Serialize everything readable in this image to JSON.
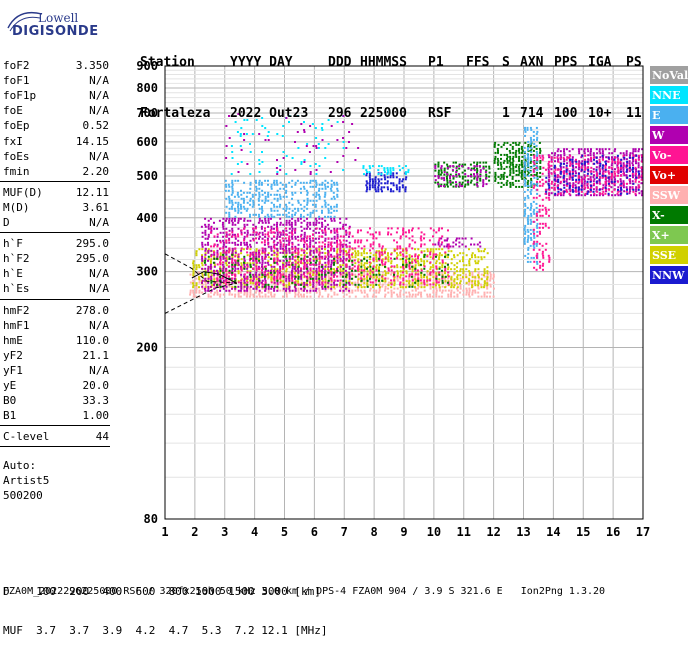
{
  "logo": {
    "line1": "Lowell",
    "line2": "DIGISONDE"
  },
  "header": {
    "labels": [
      "Station",
      "YYYY DAY",
      "DDD",
      "HHMMSS",
      "P1",
      "FFS",
      "S",
      "AXN",
      "PPS",
      "IGA",
      "PS"
    ],
    "values": [
      "Fortaleza",
      "2022 Out23",
      "296",
      "225000",
      "RSF",
      "",
      "1",
      "714",
      "100",
      "10+",
      "11"
    ]
  },
  "parameters": [
    {
      "label": "foF2",
      "value": "3.350"
    },
    {
      "label": "foF1",
      "value": "N/A"
    },
    {
      "label": "foF1p",
      "value": "N/A"
    },
    {
      "label": "foE",
      "value": "N/A"
    },
    {
      "label": "foEp",
      "value": "0.52"
    },
    {
      "label": "fxI",
      "value": "14.15"
    },
    {
      "label": "foEs",
      "value": "N/A"
    },
    {
      "label": "fmin",
      "value": "2.20"
    },
    {
      "label": "MUF(D)",
      "value": "12.11"
    },
    {
      "label": "M(D)",
      "value": "3.61"
    },
    {
      "label": "D",
      "value": "N/A"
    },
    {
      "label": "h`F",
      "value": "295.0"
    },
    {
      "label": "h`F2",
      "value": "295.0"
    },
    {
      "label": "h`E",
      "value": "N/A"
    },
    {
      "label": "h`Es",
      "value": "N/A"
    },
    {
      "label": "hmF2",
      "value": "278.0"
    },
    {
      "label": "hmF1",
      "value": "N/A"
    },
    {
      "label": "hmE",
      "value": "110.0"
    },
    {
      "label": "yF2",
      "value": "21.1"
    },
    {
      "label": "yF1",
      "value": "N/A"
    },
    {
      "label": "yE",
      "value": "20.0"
    },
    {
      "label": "B0",
      "value": "33.3"
    },
    {
      "label": "B1",
      "value": "1.00"
    },
    {
      "label": "C-level",
      "value": "44"
    }
  ],
  "autoscale": {
    "line1": "Auto:",
    "line2": "Artist5",
    "line3": "500200"
  },
  "legend": [
    {
      "label": "NoVal",
      "color": "#a0a0a0"
    },
    {
      "label": "NNE",
      "color": "#00e5ff"
    },
    {
      "label": "E",
      "color": "#4ab0f0"
    },
    {
      "label": "W",
      "color": "#b000b0"
    },
    {
      "label": "Vo-",
      "color": "#ff1493"
    },
    {
      "label": "Vo+",
      "color": "#e00000"
    },
    {
      "label": "SSW",
      "color": "#ffb0b0"
    },
    {
      "label": "X-",
      "color": "#007a00"
    },
    {
      "label": "X+",
      "color": "#7ec850"
    },
    {
      "label": "SSE",
      "color": "#d0d000"
    },
    {
      "label": "NNW",
      "color": "#1a1ad0"
    }
  ],
  "mufTable": {
    "dLabel": "D",
    "mufLabel": "MUF",
    "distances": [
      "100",
      "200",
      "400",
      "600",
      "800",
      "1000",
      "1500",
      "3000"
    ],
    "distUnit": "[km]",
    "mufs": [
      "3.7",
      "3.7",
      "3.9",
      "4.2",
      "4.7",
      "5.3",
      "7.2",
      "12.1"
    ],
    "mufUnit": "[MHz]"
  },
  "footer": "FZA0M_2022296225000.RSF / 320fx256h 50 kHz 5.0 km / DPS-4 FZA0M 904 / 3.9 S 321.6 E   Ion2Png 1.3.20",
  "chart_data": {
    "type": "scatter",
    "title": "",
    "xlabel": "",
    "ylabel": "",
    "xlim": [
      1,
      17
    ],
    "ylim": [
      80,
      900
    ],
    "yscale": "log",
    "xticks": [
      1,
      2,
      3,
      4,
      5,
      6,
      7,
      8,
      9,
      10,
      11,
      12,
      13,
      14,
      15,
      16,
      17
    ],
    "yticks": [
      80,
      200,
      300,
      400,
      500,
      600,
      700,
      800,
      900
    ],
    "grid": true,
    "legend_position": "right",
    "clusters": [
      {
        "name": "SSW",
        "color": "#ffb0b0",
        "x": [
          1.8,
          12.0
        ],
        "y": [
          260,
          300
        ],
        "density": 0.55
      },
      {
        "name": "SSE",
        "color": "#d0d000",
        "x": [
          1.9,
          11.8
        ],
        "y": [
          275,
          340
        ],
        "density": 0.45
      },
      {
        "name": "W",
        "color": "#b000b0",
        "x": [
          2.2,
          7.2
        ],
        "y": [
          270,
          400
        ],
        "density": 0.45
      },
      {
        "name": "Vo-",
        "color": "#ff1493",
        "x": [
          2.5,
          10.5
        ],
        "y": [
          280,
          380
        ],
        "density": 0.25
      },
      {
        "name": "X-",
        "color": "#007a00",
        "x": [
          2.2,
          10.5
        ],
        "y": [
          275,
          330
        ],
        "density": 0.12
      },
      {
        "name": "E",
        "color": "#4ab0f0",
        "x": [
          3.0,
          6.8
        ],
        "y": [
          400,
          490
        ],
        "density": 0.45
      },
      {
        "name": "NNW",
        "color": "#1a1ad0",
        "x": [
          7.7,
          9.1
        ],
        "y": [
          460,
          510
        ],
        "density": 0.6
      },
      {
        "name": "NNE",
        "color": "#00e5ff",
        "x": [
          7.6,
          9.2
        ],
        "y": [
          505,
          530
        ],
        "density": 0.5
      },
      {
        "name": "X-",
        "color": "#007a00",
        "x": [
          10.0,
          11.9
        ],
        "y": [
          470,
          540
        ],
        "density": 0.45
      },
      {
        "name": "X-",
        "color": "#007a00",
        "x": [
          12.0,
          13.6
        ],
        "y": [
          470,
          600
        ],
        "density": 0.55
      },
      {
        "name": "W",
        "color": "#b000b0",
        "x": [
          10.0,
          11.8
        ],
        "y": [
          470,
          530
        ],
        "density": 0.35
      },
      {
        "name": "W",
        "color": "#b000b0",
        "x": [
          13.8,
          17.0
        ],
        "y": [
          450,
          580
        ],
        "density": 0.55
      },
      {
        "name": "Vo-",
        "color": "#ff1493",
        "x": [
          13.8,
          17.0
        ],
        "y": [
          450,
          560
        ],
        "density": 0.3
      },
      {
        "name": "NNW",
        "color": "#1a1ad0",
        "x": [
          13.6,
          16.9
        ],
        "y": [
          450,
          560
        ],
        "density": 0.2
      },
      {
        "name": "E",
        "color": "#4ab0f0",
        "x": [
          13.0,
          13.5
        ],
        "y": [
          310,
          650
        ],
        "density": 0.5
      },
      {
        "name": "Vo-",
        "color": "#ff1493",
        "x": [
          13.3,
          13.9
        ],
        "y": [
          300,
          560
        ],
        "density": 0.3
      },
      {
        "name": "W",
        "color": "#b000b0",
        "x": [
          10.0,
          11.6
        ],
        "y": [
          340,
          360
        ],
        "density": 0.35
      },
      {
        "name": "NNE",
        "color": "#00e5ff",
        "x": [
          3.2,
          7.0
        ],
        "y": [
          500,
          700
        ],
        "density": 0.04
      },
      {
        "name": "W",
        "color": "#b000b0",
        "x": [
          3.0,
          7.5
        ],
        "y": [
          500,
          700
        ],
        "density": 0.03
      }
    ],
    "traces": [
      {
        "name": "trace-upper",
        "color": "#000000",
        "dash": true,
        "x": [
          1.0,
          1.9,
          2.4,
          3.4
        ],
        "y": [
          330,
          305,
          285,
          282
        ]
      },
      {
        "name": "trace-lower",
        "color": "#000000",
        "dash": true,
        "x": [
          1.0,
          1.9,
          2.7,
          3.4
        ],
        "y": [
          240,
          258,
          275,
          282
        ]
      },
      {
        "name": "trace-solid",
        "color": "#000000",
        "dash": false,
        "x": [
          1.9,
          2.3,
          2.8,
          3.4
        ],
        "y": [
          290,
          300,
          296,
          282
        ]
      }
    ]
  }
}
